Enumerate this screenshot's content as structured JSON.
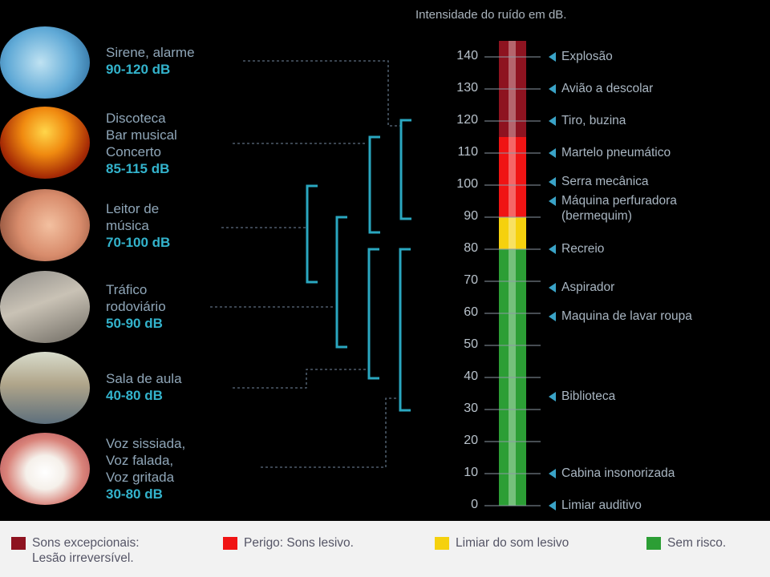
{
  "title": "Intensidade do ruído em dB.",
  "colors": {
    "exceptional": "#8e1320",
    "danger": "#f01414",
    "threshold": "#f5d10e",
    "safe": "#2c9e35",
    "bracket": "#2aa7c0",
    "label": "#33b3cc"
  },
  "sources": [
    {
      "photo": "siren-photo",
      "lines": [
        "Sirene, alarme"
      ],
      "range": "90-120 dB"
    },
    {
      "photo": "concert-crowd-photo",
      "lines": [
        "Discoteca",
        "Bar musical",
        "Concerto"
      ],
      "range": "85-115 dB"
    },
    {
      "photo": "ear-earphone-photo",
      "lines": [
        "Leitor de",
        "música"
      ],
      "range": "70-100 dB"
    },
    {
      "photo": "road-traffic-photo",
      "lines": [
        "Tráfico",
        "rodoviário"
      ],
      "range": "50-90 dB"
    },
    {
      "photo": "classroom-photo",
      "lines": [
        "Sala de aula"
      ],
      "range": "40-80 dB"
    },
    {
      "photo": "smiling-mouth-photo",
      "lines": [
        "Voz sissiada,",
        "Voz falada,",
        "Voz gritada"
      ],
      "range": "30-80 dB"
    }
  ],
  "scale": {
    "ticks": [
      "0",
      "10",
      "20",
      "30",
      "40",
      "50",
      "60",
      "70",
      "80",
      "90",
      "100",
      "110",
      "120",
      "130",
      "140"
    ],
    "bands": [
      {
        "from": 0,
        "to": 80,
        "color": "safe"
      },
      {
        "from": 80,
        "to": 90,
        "color": "threshold"
      },
      {
        "from": 90,
        "to": 115,
        "color": "danger"
      },
      {
        "from": 115,
        "to": 145,
        "color": "exceptional"
      }
    ]
  },
  "events": [
    {
      "db": 140,
      "lines": [
        "Explosão"
      ]
    },
    {
      "db": 130,
      "lines": [
        "Avião a descolar"
      ]
    },
    {
      "db": 120,
      "lines": [
        "Tiro, buzina"
      ]
    },
    {
      "db": 110,
      "lines": [
        "Martelo pneumático"
      ]
    },
    {
      "db": 101,
      "lines": [
        "Serra mecânica"
      ]
    },
    {
      "db": 95,
      "lines": [
        "Máquina perfuradora",
        "(bermequim)"
      ]
    },
    {
      "db": 80,
      "lines": [
        "Recreio"
      ]
    },
    {
      "db": 68,
      "lines": [
        "Aspirador"
      ]
    },
    {
      "db": 59,
      "lines": [
        "Maquina de lavar roupa"
      ]
    },
    {
      "db": 34,
      "lines": [
        "Biblioteca"
      ]
    },
    {
      "db": 10,
      "lines": [
        "Cabina insonorizada"
      ]
    },
    {
      "db": 0,
      "lines": [
        "Limiar auditivo"
      ]
    }
  ],
  "legend": [
    {
      "color": "exceptional",
      "lines": [
        "Sons excepcionais:",
        "Lesão irreversível."
      ]
    },
    {
      "color": "danger",
      "lines": [
        "Perigo: Sons lesivo."
      ]
    },
    {
      "color": "threshold",
      "lines": [
        "Limiar do som lesivo"
      ]
    },
    {
      "color": "safe",
      "lines": [
        "Sem risco."
      ]
    }
  ]
}
